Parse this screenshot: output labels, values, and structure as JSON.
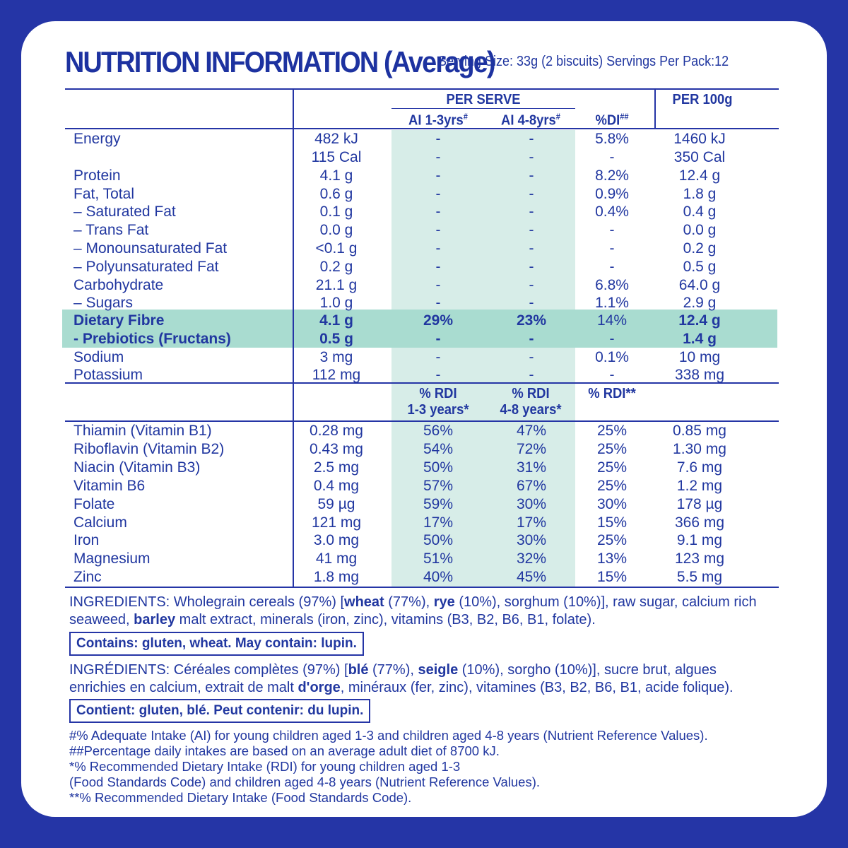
{
  "header": {
    "title": "NUTRITION INFORMATION (Average)",
    "serving": "Serving Size: 33g (2 biscuits)  Servings Per Pack:12"
  },
  "columns": {
    "per_serve": "PER SERVE",
    "per_100g": "PER 100g",
    "ai_1_3": "AI 1-3yrs",
    "ai_4_8": "AI 4-8yrs",
    "di": "%DI",
    "hash": "#",
    "hash2": "##",
    "rdi_1_3_a": "% RDI",
    "rdi_1_3_b": "1-3 years*",
    "rdi_4_8_a": "% RDI",
    "rdi_4_8_b": "4-8 years*",
    "rdi_adult": "% RDI**"
  },
  "nutrients": [
    {
      "name": "Energy",
      "serve": "482 kJ",
      "ai13": "-",
      "ai48": "-",
      "di": "5.8%",
      "per100": "1460 kJ"
    },
    {
      "name": "",
      "serve": "115 Cal",
      "ai13": "-",
      "ai48": "-",
      "di": "-",
      "per100": "350 Cal"
    },
    {
      "name": "Protein",
      "serve": "4.1 g",
      "ai13": "-",
      "ai48": "-",
      "di": "8.2%",
      "per100": "12.4 g"
    },
    {
      "name": "Fat, Total",
      "serve": "0.6 g",
      "ai13": "-",
      "ai48": "-",
      "di": "0.9%",
      "per100": "1.8 g"
    },
    {
      "name": "– Saturated Fat",
      "serve": "0.1 g",
      "ai13": "-",
      "ai48": "-",
      "di": "0.4%",
      "per100": "0.4 g"
    },
    {
      "name": "– Trans Fat",
      "serve": "0.0 g",
      "ai13": "-",
      "ai48": "-",
      "di": "-",
      "per100": "0.0 g"
    },
    {
      "name": "– Monounsaturated Fat",
      "serve": "<0.1 g",
      "ai13": "-",
      "ai48": "-",
      "di": "-",
      "per100": "0.2 g"
    },
    {
      "name": "– Polyunsaturated Fat",
      "serve": "0.2 g",
      "ai13": "-",
      "ai48": "-",
      "di": "-",
      "per100": "0.5 g"
    },
    {
      "name": "Carbohydrate",
      "serve": "21.1 g",
      "ai13": "-",
      "ai48": "-",
      "di": "6.8%",
      "per100": "64.0 g"
    },
    {
      "name": "– Sugars",
      "serve": "1.0 g",
      "ai13": "-",
      "ai48": "-",
      "di": "1.1%",
      "per100": "2.9 g"
    },
    {
      "name": "Dietary Fibre",
      "serve": "4.1 g",
      "ai13": "29%",
      "ai48": "23%",
      "di": "14%",
      "per100": "12.4 g"
    },
    {
      "name": "- Prebiotics (Fructans)",
      "serve": "0.5 g",
      "ai13": "-",
      "ai48": "-",
      "di": "-",
      "per100": "1.4 g"
    },
    {
      "name": "Sodium",
      "serve": "3 mg",
      "ai13": "-",
      "ai48": "-",
      "di": "0.1%",
      "per100": "10 mg"
    },
    {
      "name": "Potassium",
      "serve": "112 mg",
      "ai13": "-",
      "ai48": "-",
      "di": "-",
      "per100": "338 mg"
    }
  ],
  "vitamins": [
    {
      "name": "Thiamin (Vitamin B1)",
      "serve": "0.28 mg",
      "r13": "56%",
      "r48": "47%",
      "adult": "25%",
      "per100": "0.85 mg"
    },
    {
      "name": "Riboflavin (Vitamin B2)",
      "serve": "0.43 mg",
      "r13": "54%",
      "r48": "72%",
      "adult": "25%",
      "per100": "1.30 mg"
    },
    {
      "name": "Niacin (Vitamin B3)",
      "serve": "2.5 mg",
      "r13": "50%",
      "r48": "31%",
      "adult": "25%",
      "per100": "7.6 mg"
    },
    {
      "name": "Vitamin B6",
      "serve": "0.4 mg",
      "r13": "57%",
      "r48": "67%",
      "adult": "25%",
      "per100": "1.2 mg"
    },
    {
      "name": "Folate",
      "serve": "59 µg",
      "r13": "59%",
      "r48": "30%",
      "adult": "30%",
      "per100": "178 µg"
    },
    {
      "name": "Calcium",
      "serve": "121 mg",
      "r13": "17%",
      "r48": "17%",
      "adult": "15%",
      "per100": "366 mg"
    },
    {
      "name": "Iron",
      "serve": "3.0 mg",
      "r13": "50%",
      "r48": "30%",
      "adult": "25%",
      "per100": "9.1 mg"
    },
    {
      "name": "Magnesium",
      "serve": "41 mg",
      "r13": "51%",
      "r48": "32%",
      "adult": "13%",
      "per100": "123 mg"
    },
    {
      "name": "Zinc",
      "serve": "1.8 mg",
      "r13": "40%",
      "r48": "45%",
      "adult": "15%",
      "per100": "5.5 mg"
    }
  ],
  "ingredients_en": {
    "l1_a": "INGREDIENTS: Wholegrain cereals (97%) [",
    "l1_wheat": "wheat",
    "l1_b": " (77%), ",
    "l1_rye": "rye",
    "l1_c": " (10%), sorghum (10%)], raw sugar, calcium rich",
    "l2_a": "seaweed, ",
    "l2_barley": "barley",
    "l2_b": " malt extract, minerals (iron, zinc), vitamins (B3, B2, B6, B1, folate)."
  },
  "contains_en": "Contains: gluten, wheat. May contain: lupin.",
  "ingredients_fr": {
    "l1_a": "INGRÉDIENTS: Céréales complètes (97%) [",
    "l1_ble": "blé",
    "l1_b": " (77%), ",
    "l1_seigle": "seigle",
    "l1_c": " (10%), sorgho (10%)], sucre brut, algues",
    "l2_a": "enrichies en calcium, extrait de malt ",
    "l2_orge": "d'orge",
    "l2_b": ", minéraux (fer, zinc), vitamines (B3, B2, B6, B1, acide folique)."
  },
  "contains_fr": "Contient: gluten, blé.  Peut contenir: du lupin.",
  "footnotes": [
    "#% Adequate Intake (AI) for young children aged 1-3 and children aged 4-8 years (Nutrient Reference Values).",
    "##Percentage daily intakes are based on an average adult diet of 8700 kJ.",
    "*% Recommended Dietary Intake (RDI) for young children aged 1-3",
    "(Food Standards Code) and children aged 4-8 years (Nutrient Reference Values).",
    "**% Recommended Dietary Intake (Food Standards Code)."
  ]
}
